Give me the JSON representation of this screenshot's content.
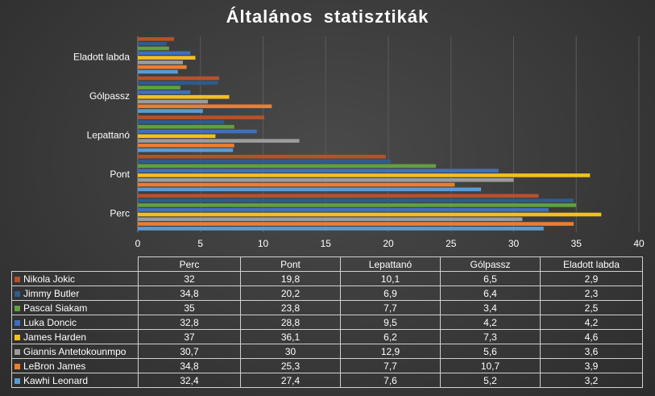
{
  "chart_data": {
    "type": "bar",
    "orientation": "horizontal",
    "title": "Általános  statisztikák",
    "categories": [
      "Perc",
      "Pont",
      "Lepattanó",
      "Gólpassz",
      "Eladott labda"
    ],
    "series": [
      {
        "name": "Nikola Jokic",
        "color": "#b5522a",
        "values": [
          32,
          19.8,
          10.1,
          6.5,
          2.9
        ]
      },
      {
        "name": "Jimmy Butler",
        "color": "#2f5b8e",
        "values": [
          34.8,
          20.2,
          6.9,
          6.4,
          2.3
        ]
      },
      {
        "name": "Pascal Siakam",
        "color": "#5fa13f",
        "values": [
          35,
          23.8,
          7.7,
          3.4,
          2.5
        ]
      },
      {
        "name": "Luka Doncic",
        "color": "#3f6fbf",
        "values": [
          32.8,
          28.8,
          9.5,
          4.2,
          4.2
        ]
      },
      {
        "name": "James Harden",
        "color": "#f2c01e",
        "values": [
          37,
          36.1,
          6.2,
          7.3,
          4.6
        ]
      },
      {
        "name": "Giannis Antetokounmpo",
        "color": "#9c9c9c",
        "values": [
          30.7,
          30,
          12.9,
          5.6,
          3.6
        ]
      },
      {
        "name": "LeBron James",
        "color": "#ed7d31",
        "values": [
          34.8,
          25.3,
          7.7,
          10.7,
          3.9
        ]
      },
      {
        "name": "Kawhi Leonard",
        "color": "#5b9bd5",
        "values": [
          32.4,
          27.4,
          7.6,
          5.2,
          3.2
        ]
      }
    ],
    "xlim": [
      0,
      40
    ],
    "x_ticks": [
      "0",
      "5",
      "10",
      "15",
      "20",
      "25",
      "30",
      "35",
      "40"
    ],
    "grid": true,
    "legend": "data-table-below"
  },
  "table": {
    "headers": [
      "Perc",
      "Pont",
      "Lepattanó",
      "Gólpassz",
      "Eladott labda"
    ],
    "rows": [
      {
        "name": "Nikola Jokic",
        "cells": [
          "32",
          "19,8",
          "10,1",
          "6,5",
          "2,9"
        ]
      },
      {
        "name": "Jimmy Butler",
        "cells": [
          "34,8",
          "20,2",
          "6,9",
          "6,4",
          "2,3"
        ]
      },
      {
        "name": "Pascal Siakam",
        "cells": [
          "35",
          "23,8",
          "7,7",
          "3,4",
          "2,5"
        ]
      },
      {
        "name": "Luka Doncic",
        "cells": [
          "32,8",
          "28,8",
          "9,5",
          "4,2",
          "4,2"
        ]
      },
      {
        "name": "James Harden",
        "cells": [
          "37",
          "36,1",
          "6,2",
          "7,3",
          "4,6"
        ]
      },
      {
        "name": "Giannis Antetokounmpo",
        "cells": [
          "30,7",
          "30",
          "12,9",
          "5,6",
          "3,6"
        ]
      },
      {
        "name": "LeBron James",
        "cells": [
          "34,8",
          "25,3",
          "7,7",
          "10,7",
          "3,9"
        ]
      },
      {
        "name": "Kawhi Leonard",
        "cells": [
          "32,4",
          "27,4",
          "7,6",
          "5,2",
          "3,2"
        ]
      }
    ]
  }
}
